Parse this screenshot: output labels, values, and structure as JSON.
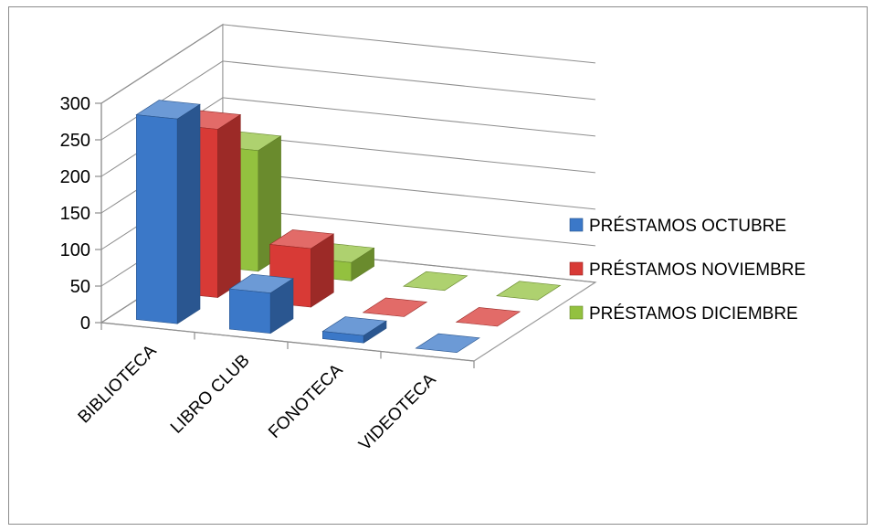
{
  "chart_data": {
    "type": "bar",
    "subtype": "3d-clustered-column",
    "categories": [
      "BIBLIOTECA",
      "LIBRO CLUB",
      "FONOTECA",
      "VIDEOTECA"
    ],
    "series": [
      {
        "name": "PRÉSTAMOS OCTUBRE",
        "values": [
          280,
          55,
          10,
          0
        ],
        "color": "#3b78c8"
      },
      {
        "name": "PRÉSTAMOS NOVIEMBRE",
        "values": [
          230,
          80,
          0,
          0
        ],
        "color": "#d83a36"
      },
      {
        "name": "PRÉSTAMOS DICIEMBRE",
        "values": [
          165,
          25,
          0,
          0
        ],
        "color": "#93c13f"
      }
    ],
    "y_ticks": [
      "0",
      "50",
      "100",
      "150",
      "200",
      "250",
      "300"
    ],
    "ylim": [
      0,
      300
    ],
    "grid": true,
    "legend_position": "right"
  }
}
